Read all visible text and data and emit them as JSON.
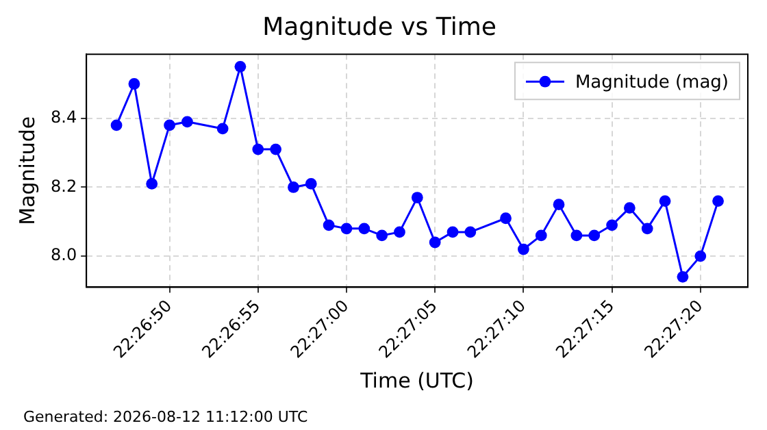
{
  "chart_data": {
    "type": "line",
    "title": "Magnitude vs Time",
    "xlabel": "Time (UTC)",
    "ylabel": "Magnitude",
    "x": [
      22.446389,
      22.446667,
      22.446944,
      22.447222,
      22.4475,
      22.448056,
      22.448333,
      22.448611,
      22.448889,
      22.449167,
      22.449444,
      22.449722,
      22.45,
      22.450278,
      22.450556,
      22.450833,
      22.451111,
      22.451389,
      22.451667,
      22.451944,
      22.4525,
      22.452778,
      22.453056,
      22.453333,
      22.453611,
      22.453889,
      22.454167,
      22.454444,
      22.454722,
      22.455,
      22.455278,
      22.455556,
      22.455833
    ],
    "series": [
      {
        "name": "Magnitude (mag)",
        "color": "#0000ff",
        "values": [
          8.38,
          8.5,
          8.21,
          8.38,
          8.39,
          8.37,
          8.55,
          8.31,
          8.31,
          8.2,
          8.21,
          8.09,
          8.08,
          8.08,
          8.06,
          8.07,
          8.17,
          8.04,
          8.07,
          8.07,
          8.11,
          8.02,
          8.06,
          8.15,
          8.06,
          8.06,
          8.09,
          8.14,
          8.08,
          8.16,
          7.94,
          8.0,
          8.16
        ]
      }
    ],
    "xlim": [
      22.445917,
      22.4563
    ],
    "xticks": [
      {
        "value": 22.447222,
        "label": "22:26:50"
      },
      {
        "value": 22.448611,
        "label": "22:26:55"
      },
      {
        "value": 22.45,
        "label": "22:27:00"
      },
      {
        "value": 22.451389,
        "label": "22:27:05"
      },
      {
        "value": 22.452778,
        "label": "22:27:10"
      },
      {
        "value": 22.454167,
        "label": "22:27:15"
      },
      {
        "value": 22.455556,
        "label": "22:27:20"
      }
    ],
    "ylim": [
      7.91,
      8.586
    ],
    "yticks": [
      {
        "value": 8.0,
        "label": "8.0"
      },
      8.2,
      8.4
    ],
    "grid": true,
    "legend": "top right",
    "marker": "circle",
    "line_style": "solid",
    "annotations": [
      "Generated: 2026-08-12 11:12:00 UTC"
    ]
  }
}
